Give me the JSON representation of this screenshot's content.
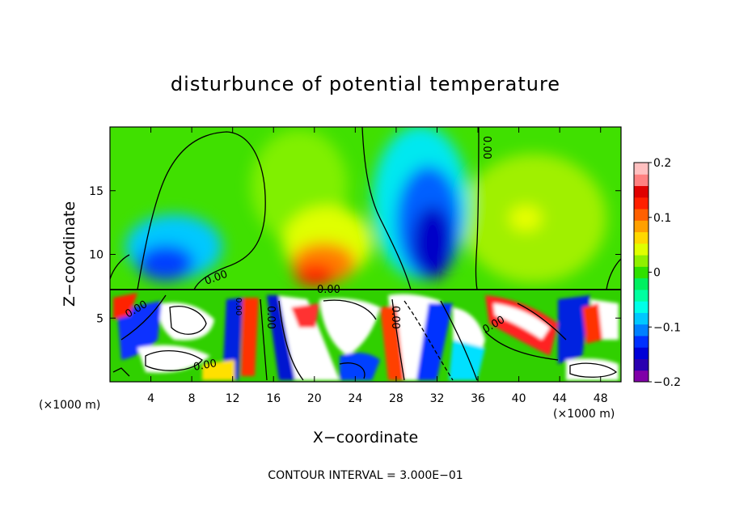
{
  "chart_data": {
    "type": "heatmap",
    "title": "disturbunce of potential temperature",
    "xlabel": "X−coordinate",
    "ylabel": "Z−coordinate",
    "x_unit": "(×1000 m)",
    "x_unit_right": "(×1000 m)",
    "xlim": [
      0,
      50
    ],
    "ylim": [
      0,
      20
    ],
    "x_ticks": [
      4,
      8,
      12,
      16,
      20,
      24,
      28,
      32,
      36,
      40,
      44,
      48
    ],
    "y_ticks": [
      5,
      10,
      15
    ],
    "colorbar": {
      "min": -0.2,
      "max": 0.2,
      "ticks": [
        {
          "value": 0.2,
          "label": "0.2"
        },
        {
          "value": 0.1,
          "label": "0.1"
        },
        {
          "value": 0,
          "label": "0"
        },
        {
          "value": -0.1,
          "label": "−0.1"
        },
        {
          "value": -0.2,
          "label": "−0.2"
        }
      ],
      "colors": [
        "#8000a8",
        "#2a00b0",
        "#0000d8",
        "#0030ff",
        "#0080ff",
        "#00c8ff",
        "#00ffe8",
        "#00ffa0",
        "#00f060",
        "#30e000",
        "#90f000",
        "#e0ff00",
        "#ffd800",
        "#ffa000",
        "#ff6000",
        "#ff2000",
        "#e00000",
        "#ff8080",
        "#ffc0c0"
      ]
    },
    "features": [
      {
        "type": "interface_height",
        "z": 7.2
      },
      {
        "type": "cold_anomaly",
        "x": 8,
        "z": 9.5,
        "value": -0.12
      },
      {
        "type": "cold_anomaly",
        "x": 31.5,
        "z": 11.5,
        "value": -0.2
      },
      {
        "type": "warm_anomaly",
        "x": 19,
        "z": 9.2,
        "value": 0.12
      },
      {
        "type": "warm_anomaly",
        "x": 41,
        "z": 13,
        "value": 0.05
      }
    ],
    "contour_labels": [
      "0.00",
      "0.00",
      "0.00",
      "0.00",
      "0.00",
      "0.00",
      "0.00",
      "0.00",
      "0.00"
    ],
    "contour_interval_text": "CONTOUR INTERVAL = 3.000E−01"
  }
}
